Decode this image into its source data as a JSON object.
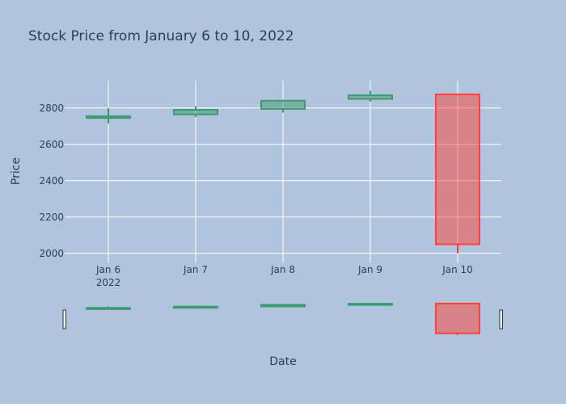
{
  "colors": {
    "background": "#b0c4de",
    "grid": "#ffffff",
    "text": "#2a3f5f",
    "increasing": "#3d9970",
    "increasing_fill": "rgba(61,153,112,0.5)",
    "decreasing": "#ff4136",
    "decreasing_fill": "rgba(255,65,54,0.5)"
  },
  "chart_data": {
    "type": "candlestick",
    "title": "Stock Price from January 6 to 10, 2022",
    "xlabel": "Date",
    "ylabel": "Price",
    "x_tick_labels": [
      "Jan 6",
      "Jan 7",
      "Jan 8",
      "Jan 9",
      "Jan 10"
    ],
    "x_tick_year": "2022",
    "y_ticks": [
      2000,
      2200,
      2400,
      2600,
      2800
    ],
    "ylim": [
      1950,
      2950
    ],
    "grid": true,
    "range_slider": true,
    "candles": [
      {
        "date": "2022-01-06",
        "open": 2745,
        "high": 2800,
        "low": 2715,
        "close": 2755
      },
      {
        "date": "2022-01-07",
        "open": 2765,
        "high": 2810,
        "low": 2750,
        "close": 2790
      },
      {
        "date": "2022-01-08",
        "open": 2795,
        "high": 2845,
        "low": 2775,
        "close": 2840
      },
      {
        "date": "2022-01-09",
        "open": 2850,
        "high": 2895,
        "low": 2835,
        "close": 2870
      },
      {
        "date": "2022-01-10",
        "open": 2875,
        "high": 2875,
        "low": 2000,
        "close": 2050
      }
    ]
  }
}
